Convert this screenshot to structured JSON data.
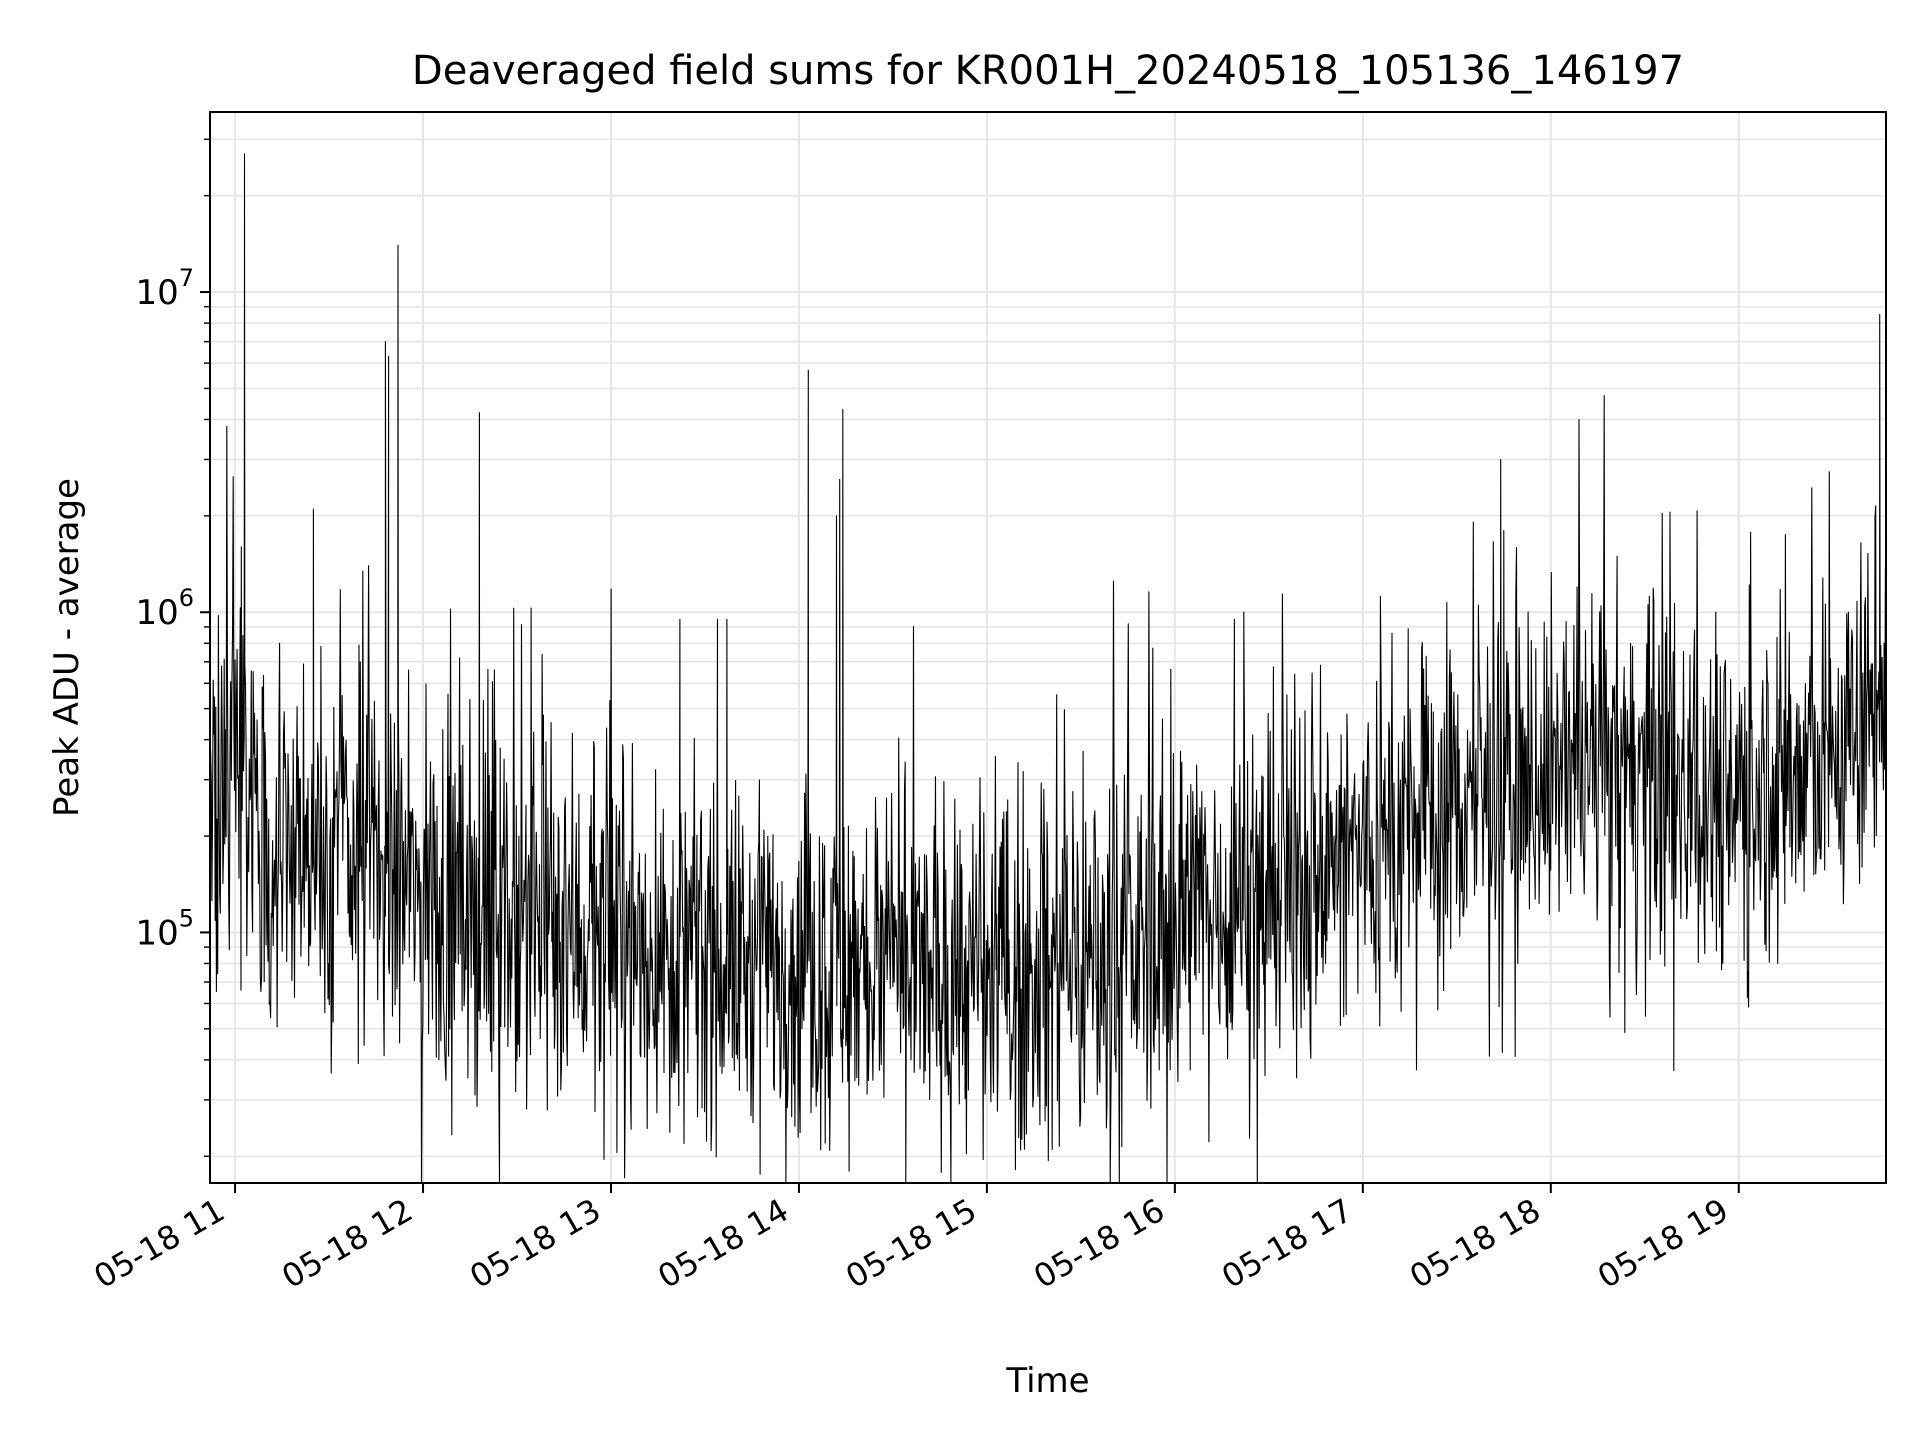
{
  "chart_data": {
    "type": "line",
    "title": "Deaveraged field sums for KR001H_20240518_105136_146197",
    "xlabel": "Time",
    "ylabel": "Peak ADU - average",
    "yscale": "log",
    "grid": true,
    "grid_minor": true,
    "line_color": "#000000",
    "grid_color": "#e6e6e6",
    "xlim": [
      "05-18 10:52",
      "05-18 19:47"
    ],
    "ylim": [
      16500,
      36500000
    ],
    "x_ticks": [
      "05-18 11",
      "05-18 12",
      "05-18 13",
      "05-18 14",
      "05-18 15",
      "05-18 16",
      "05-18 17",
      "05-18 18",
      "05-18 19"
    ],
    "y_ticks": [
      {
        "value": 100000,
        "base": "10",
        "exp": "5"
      },
      {
        "value": 1000000,
        "base": "10",
        "exp": "6"
      },
      {
        "value": 10000000,
        "base": "10",
        "exp": "7"
      }
    ],
    "series": [
      {
        "x": [
          "05-18 10:52",
          "05-18 11:02",
          "05-18 11:12",
          "05-18 11:24",
          "05-18 11:36",
          "05-18 11:48",
          "05-18 12:00",
          "05-18 12:15",
          "05-18 12:30",
          "05-18 12:45",
          "05-18 13:00",
          "05-18 13:15",
          "05-18 13:30",
          "05-18 13:45",
          "05-18 14:00",
          "05-18 14:15",
          "05-18 14:30",
          "05-18 14:45",
          "05-18 15:00",
          "05-18 15:15",
          "05-18 15:30",
          "05-18 15:45",
          "05-18 16:00",
          "05-18 16:15",
          "05-18 16:30",
          "05-18 16:45",
          "05-18 17:00",
          "05-18 17:15",
          "05-18 17:30",
          "05-18 17:45",
          "05-18 18:00",
          "05-18 18:15",
          "05-18 18:30",
          "05-18 18:45",
          "05-18 19:00",
          "05-18 19:15",
          "05-18 19:30",
          "05-18 19:47"
        ],
        "y": [
          250000,
          350000,
          170000,
          180000,
          180000,
          150000,
          130000,
          110000,
          110000,
          105000,
          95000,
          90000,
          85000,
          80000,
          80000,
          80000,
          75000,
          72000,
          70000,
          72000,
          80000,
          85000,
          110000,
          125000,
          140000,
          150000,
          180000,
          215000,
          250000,
          280000,
          320000,
          320000,
          300000,
          280000,
          290000,
          300000,
          340000,
          620000
        ]
      }
    ],
    "spikes": [
      {
        "x": "05-18 11:03",
        "y": 27000000
      },
      {
        "x": "05-18 11:02",
        "y": 1600000
      },
      {
        "x": "05-18 11:25",
        "y": 2100000
      },
      {
        "x": "05-18 11:48",
        "y": 7000000
      },
      {
        "x": "05-18 11:49",
        "y": 6300000
      },
      {
        "x": "05-18 11:52",
        "y": 14000000
      },
      {
        "x": "05-18 12:18",
        "y": 4200000
      },
      {
        "x": "05-18 13:22",
        "y": 950000
      },
      {
        "x": "05-18 13:34",
        "y": 950000
      },
      {
        "x": "05-18 13:37",
        "y": 950000
      },
      {
        "x": "05-18 14:03",
        "y": 5700000
      },
      {
        "x": "05-18 14:12",
        "y": 2000000
      },
      {
        "x": "05-18 14:13",
        "y": 2600000
      },
      {
        "x": "05-18 14:14",
        "y": 4300000
      },
      {
        "x": "05-18 16:19",
        "y": 950000
      },
      {
        "x": "05-18 16:22",
        "y": 1000000
      },
      {
        "x": "05-18 17:44",
        "y": 3000000
      },
      {
        "x": "05-18 17:45",
        "y": 1800000
      },
      {
        "x": "05-18 19:35",
        "y": 1000000
      },
      {
        "x": "05-18 19:45",
        "y": 8500000
      }
    ]
  }
}
